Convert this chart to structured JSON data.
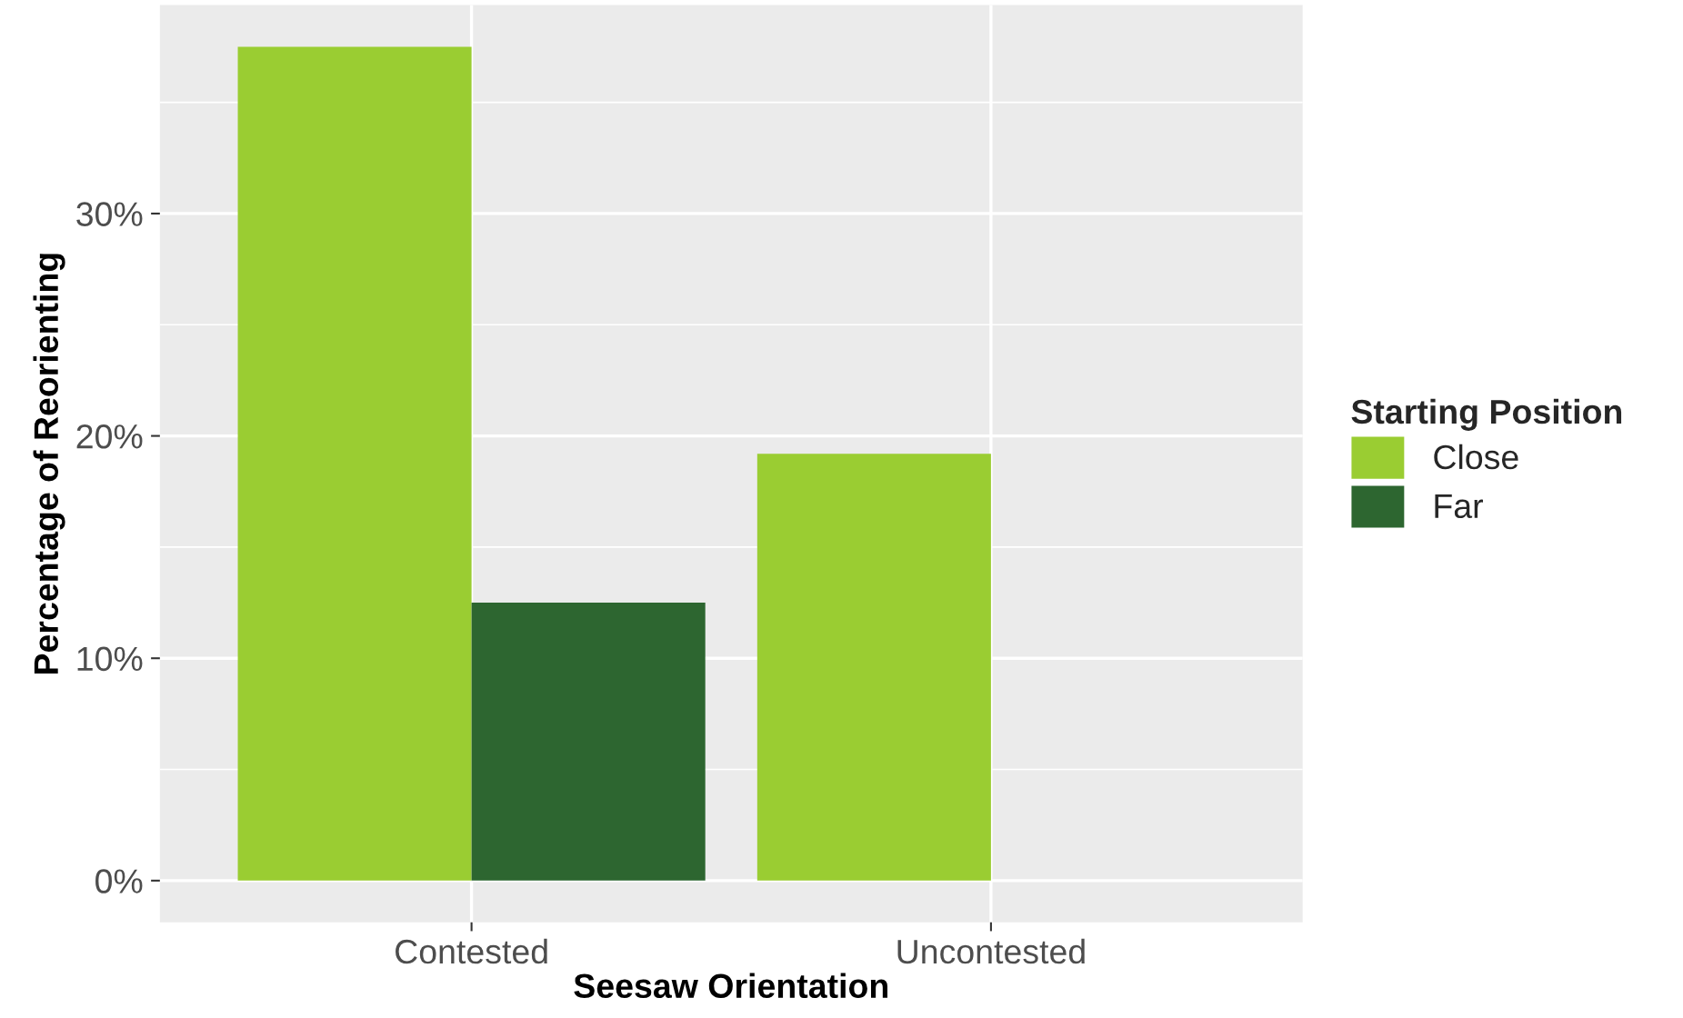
{
  "chart_data": {
    "type": "bar",
    "xlabel": "Seesaw Orientation",
    "ylabel": "Percentage of Reorienting",
    "legend_title": "Starting Position",
    "categories": [
      "Contested",
      "Uncontested"
    ],
    "series": [
      {
        "name": "Close",
        "color": "#9acd32",
        "values": [
          37.5,
          19.2
        ]
      },
      {
        "name": "Far",
        "color": "#2d6630",
        "values": [
          12.5,
          null
        ]
      }
    ],
    "ylim": [
      -1.875,
      39.375
    ],
    "yticks": [
      {
        "value": 0,
        "label": "0%"
      },
      {
        "value": 10,
        "label": "10%"
      },
      {
        "value": 20,
        "label": "20%"
      },
      {
        "value": 30,
        "label": "30%"
      }
    ],
    "grid": true,
    "legend": "right"
  }
}
